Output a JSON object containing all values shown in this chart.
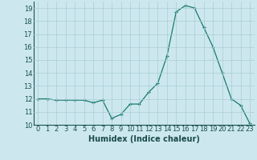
{
  "x": [
    0,
    1,
    2,
    3,
    4,
    5,
    6,
    7,
    8,
    9,
    10,
    11,
    12,
    13,
    14,
    15,
    16,
    17,
    18,
    19,
    20,
    21,
    22,
    23
  ],
  "y": [
    12.0,
    12.0,
    11.9,
    11.9,
    11.9,
    11.9,
    11.7,
    11.9,
    10.5,
    10.8,
    11.6,
    11.6,
    12.5,
    13.2,
    15.3,
    18.7,
    19.2,
    19.0,
    17.5,
    16.0,
    14.0,
    12.0,
    11.5,
    10.1
  ],
  "xlabel": "Humidex (Indice chaleur)",
  "ylim": [
    10,
    19.5
  ],
  "xlim": [
    -0.5,
    23.5
  ],
  "yticks": [
    10,
    11,
    12,
    13,
    14,
    15,
    16,
    17,
    18,
    19
  ],
  "xticks": [
    0,
    1,
    2,
    3,
    4,
    5,
    6,
    7,
    8,
    9,
    10,
    11,
    12,
    13,
    14,
    15,
    16,
    17,
    18,
    19,
    20,
    21,
    22,
    23
  ],
  "xtick_labels": [
    "0",
    "1",
    "2",
    "3",
    "4",
    "5",
    "6",
    "7",
    "8",
    "9",
    "10",
    "11",
    "12",
    "13",
    "14",
    "15",
    "16",
    "17",
    "18",
    "19",
    "20",
    "21",
    "22",
    "23"
  ],
  "ytick_labels": [
    "10",
    "11",
    "12",
    "13",
    "14",
    "15",
    "16",
    "17",
    "18",
    "19"
  ],
  "line_color": "#1a7a6e",
  "marker": "+",
  "bg_color": "#cce8ee",
  "grid_color": "#aaccd4",
  "xlabel_fontsize": 7,
  "tick_fontsize": 6
}
